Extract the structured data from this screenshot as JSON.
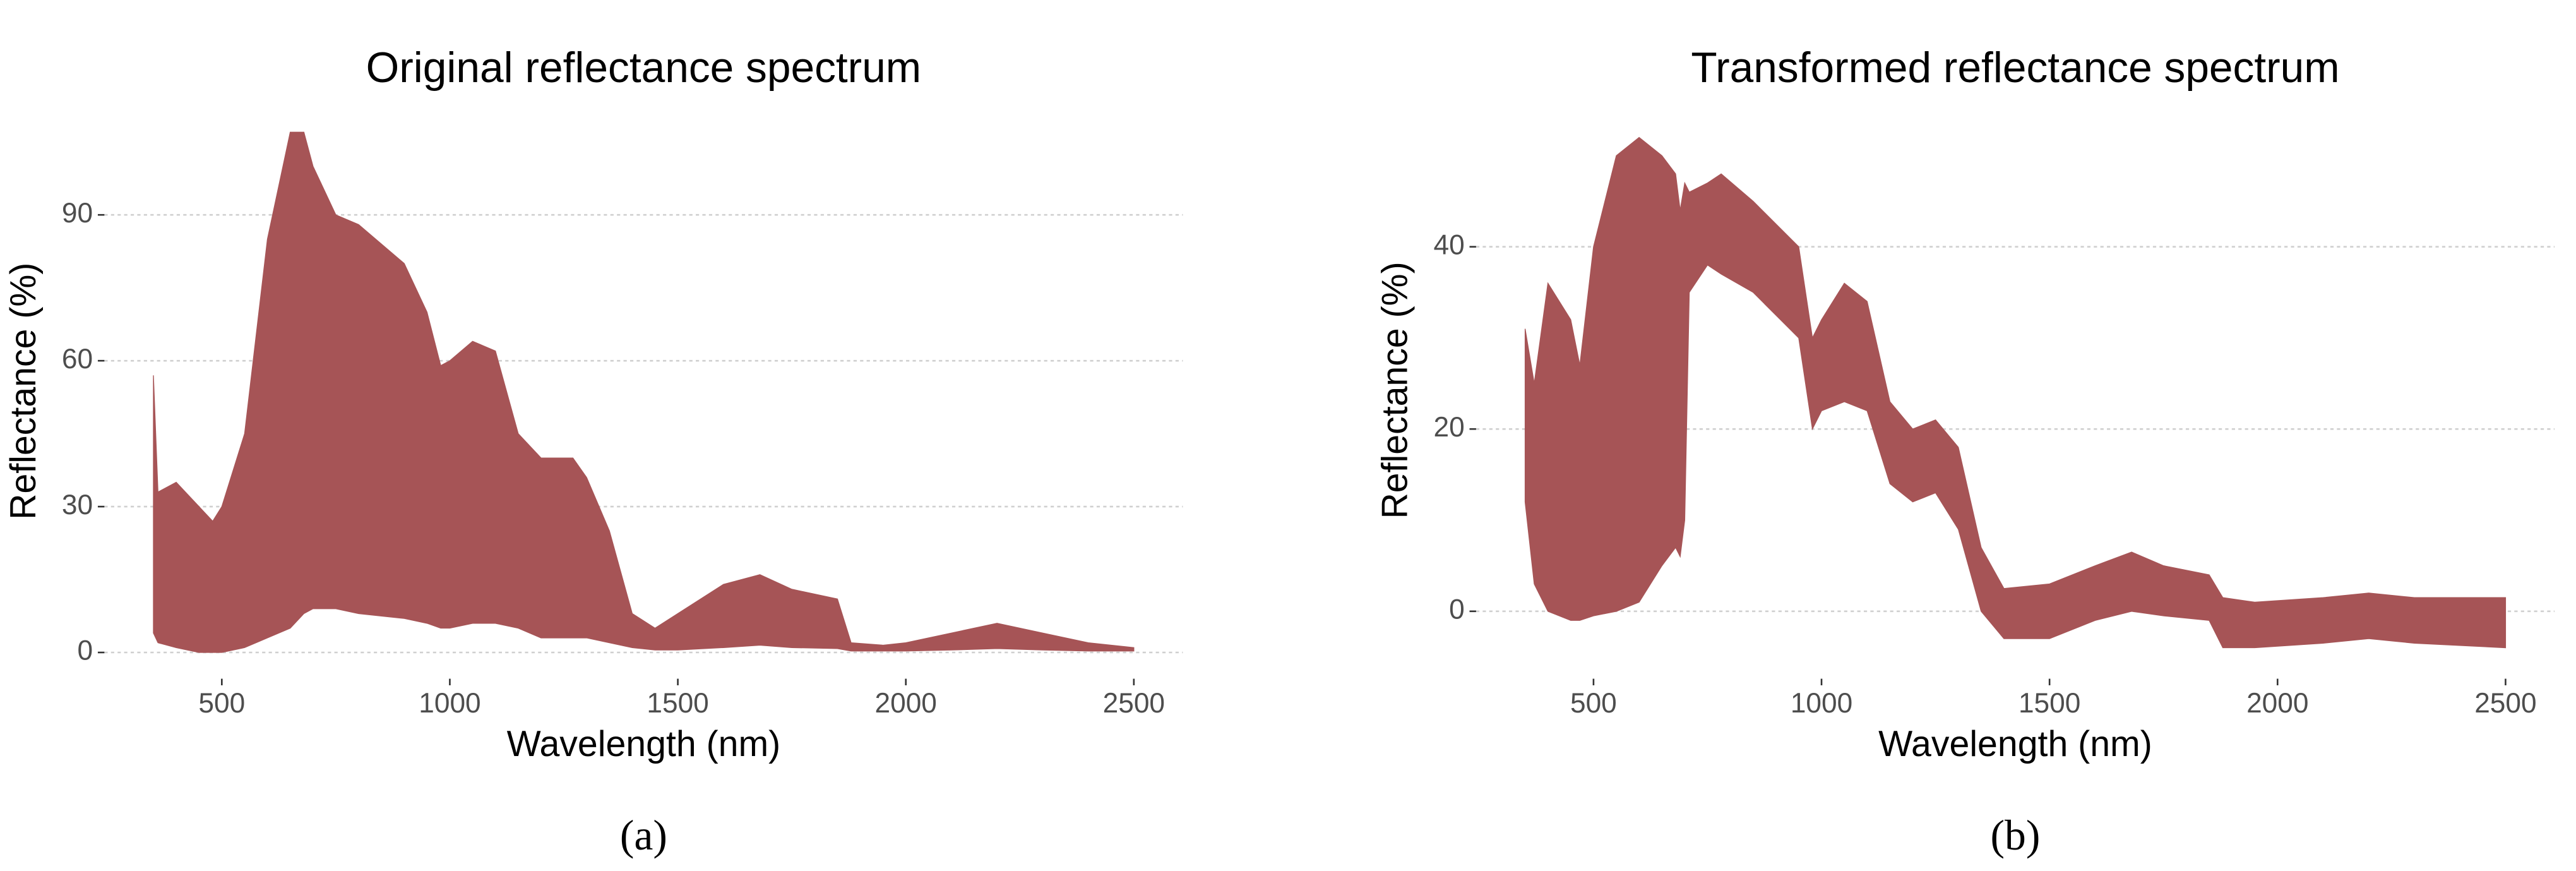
{
  "chart_data": [
    {
      "type": "range_area",
      "title": "Original reflectance spectrum",
      "xlabel": "Wavelength (nm)",
      "ylabel": "Reflectance (%)",
      "caption": "(a)",
      "color": "#a65456",
      "grid": true,
      "x": [
        350,
        360,
        400,
        450,
        480,
        500,
        550,
        600,
        650,
        680,
        700,
        750,
        800,
        900,
        950,
        980,
        1000,
        1050,
        1100,
        1150,
        1200,
        1270,
        1300,
        1350,
        1400,
        1450,
        1500,
        1600,
        1680,
        1750,
        1850,
        1880,
        1950,
        2000,
        2100,
        2200,
        2300,
        2400,
        2500
      ],
      "high": [
        57,
        33,
        35,
        30,
        27,
        30,
        45,
        85,
        107,
        107,
        100,
        90,
        88,
        80,
        70,
        59,
        60,
        64,
        62,
        45,
        40,
        40,
        36,
        25,
        8,
        5,
        8,
        14,
        16,
        13,
        11,
        2,
        1.5,
        2,
        4,
        6,
        4,
        2,
        1
      ],
      "low": [
        4,
        2,
        1,
        0,
        0,
        0,
        1,
        3,
        5,
        8,
        9,
        9,
        8,
        7,
        6,
        5,
        5,
        6,
        6,
        5,
        3,
        3,
        3,
        2,
        1,
        0.5,
        0.5,
        1,
        1.5,
        1,
        0.8,
        0.3,
        0.3,
        0.3,
        0.5,
        0.8,
        0.5,
        0.3,
        0.3
      ],
      "xlim": [
        242.5,
        2607.5
      ],
      "ylim": [
        -5.4,
        112.9
      ],
      "xticks": [
        500,
        1000,
        1500,
        2000,
        2500
      ],
      "yticks": [
        0,
        30,
        60,
        90
      ]
    },
    {
      "type": "range_area",
      "title": "Transformed reflectance spectrum",
      "xlabel": "Wavelength (nm)",
      "ylabel": "Reflectance (%)",
      "caption": "(b)",
      "color": "#a65456",
      "grid": true,
      "x": [
        350,
        370,
        400,
        450,
        470,
        500,
        550,
        600,
        650,
        680,
        690,
        700,
        710,
        750,
        780,
        850,
        950,
        980,
        1000,
        1050,
        1100,
        1150,
        1200,
        1250,
        1300,
        1350,
        1400,
        1500,
        1600,
        1680,
        1750,
        1850,
        1880,
        1950,
        2100,
        2200,
        2300,
        2500
      ],
      "high": [
        31,
        25,
        36,
        32,
        27,
        40,
        50,
        52,
        50,
        48,
        44,
        47,
        46,
        47,
        48,
        45,
        40,
        30,
        32,
        36,
        34,
        23,
        20,
        21,
        18,
        7,
        2.5,
        3,
        5,
        6.5,
        5,
        4,
        1.5,
        1,
        1.5,
        2,
        1.5,
        1.5
      ],
      "low": [
        12,
        3,
        0,
        -1,
        -1,
        -0.5,
        0,
        1,
        5,
        7,
        6,
        10,
        35,
        38,
        37,
        35,
        30,
        20,
        22,
        23,
        22,
        14,
        12,
        13,
        9,
        0,
        -3,
        -3,
        -1,
        0,
        -0.5,
        -1,
        -4,
        -4,
        -3.5,
        -3,
        -3.5,
        -4
      ],
      "xlim": [
        242.5,
        2607.5
      ],
      "ylim": [
        -7.4,
        55.9
      ],
      "xticks": [
        500,
        1000,
        1500,
        2000,
        2500
      ],
      "yticks": [
        0,
        20,
        40
      ]
    }
  ]
}
